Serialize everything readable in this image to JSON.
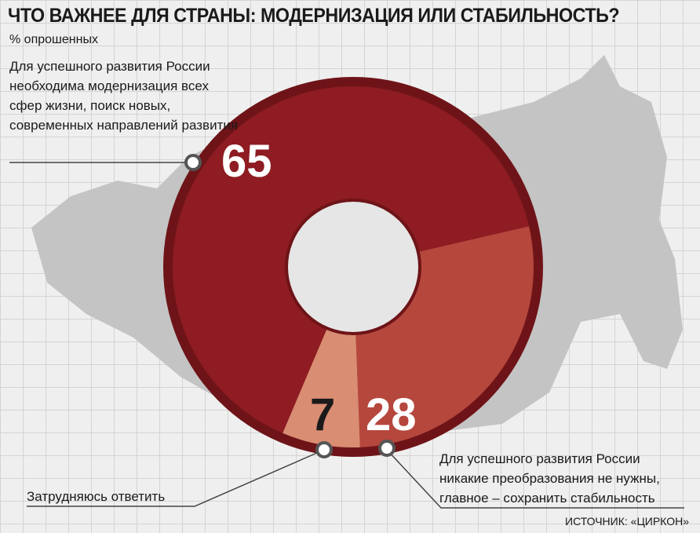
{
  "title": "ЧТО ВАЖНЕЕ ДЛЯ СТРАНЫ: МОДЕРНИЗАЦИЯ ИЛИ СТАБИЛЬНОСТЬ?",
  "subtitle": "% опрошенных",
  "source": "ИСТОЧНИК: «ЦИРКОН»",
  "chart_data": {
    "type": "pie",
    "donut": true,
    "title": "ЧТО ВАЖНЕЕ ДЛЯ СТРАНЫ: МОДЕРНИЗАЦИЯ ИЛИ СТАБИЛЬНОСТЬ?",
    "unit": "% опрошенных",
    "slices": [
      {
        "label": "Для успешного развития России необходима модернизация всех сфер жизни, поиск новых, современных направлений развития",
        "value": 65,
        "display": "65",
        "color": "#8e1c22"
      },
      {
        "label": "Для успешного развития России никакие преобразования не нужны, главное – сохранить стабильность",
        "value": 28,
        "display": "28",
        "color": "#b5473d"
      },
      {
        "label": "Затрудняюсь ответить",
        "value": 7,
        "display": "7",
        "color": "#d98d72"
      }
    ]
  },
  "colors": {
    "rim": "#6e1418",
    "map": "#c4c4c4",
    "background": "#efefef"
  }
}
